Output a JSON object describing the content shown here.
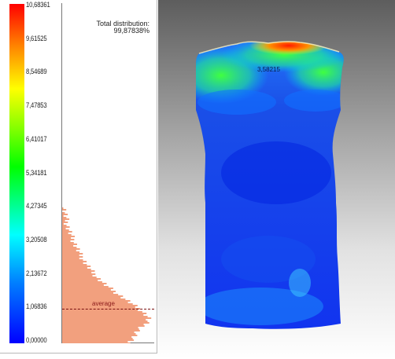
{
  "legend": {
    "ticks": [
      "10,68361",
      "9,61525",
      "8,54689",
      "7,47853",
      "6,41017",
      "5,34181",
      "4,27345",
      "3,20508",
      "2,13672",
      "1,06836",
      "0,00000"
    ],
    "tick_values": [
      10.68361,
      9.61525,
      8.54689,
      7.47853,
      6.41017,
      5.34181,
      4.27345,
      3.20508,
      2.13672,
      1.06836,
      0.0
    ],
    "scale_colors": [
      "#ff0000",
      "#ff8000",
      "#ffff00",
      "#80ff00",
      "#00ff00",
      "#00ff80",
      "#00ffff",
      "#0080ff",
      "#0000ff"
    ],
    "total_distribution_label": "Total distribution:",
    "total_distribution_value": "99,87838%",
    "average_label": "average",
    "average_value": 1.06,
    "histogram_color": "#f2a07e",
    "histogram_profile": [
      [
        4.3,
        0.02
      ],
      [
        4.0,
        0.04
      ],
      [
        3.7,
        0.06
      ],
      [
        3.4,
        0.1
      ],
      [
        3.1,
        0.15
      ],
      [
        2.8,
        0.2
      ],
      [
        2.5,
        0.27
      ],
      [
        2.2,
        0.35
      ],
      [
        2.0,
        0.42
      ],
      [
        1.8,
        0.5
      ],
      [
        1.6,
        0.6
      ],
      [
        1.4,
        0.7
      ],
      [
        1.2,
        0.8
      ],
      [
        1.0,
        0.9
      ],
      [
        0.8,
        0.97
      ],
      [
        0.6,
        0.93
      ],
      [
        0.4,
        0.85
      ],
      [
        0.2,
        0.8
      ],
      [
        0.05,
        0.75
      ]
    ]
  },
  "viewport": {
    "point_label": "3,58215"
  }
}
